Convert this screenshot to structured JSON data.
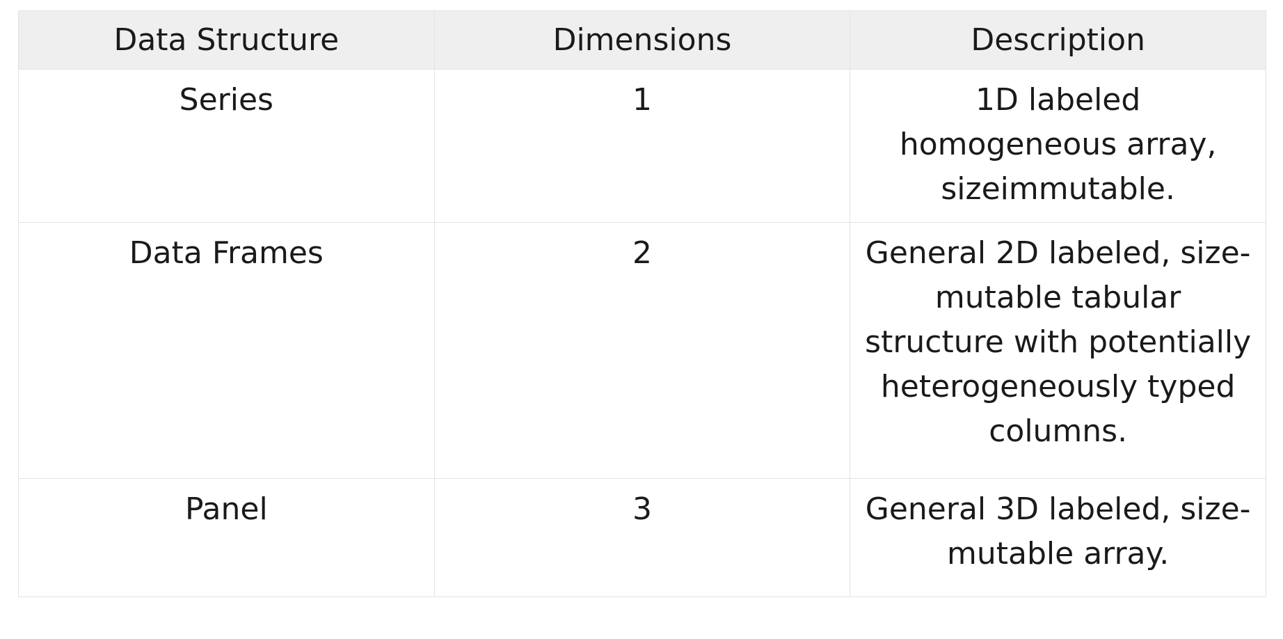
{
  "table": {
    "headers": [
      "Data Structure",
      "Dimensions",
      "Description"
    ],
    "rows": [
      {
        "structure": "Series",
        "dimensions": "1",
        "description": "1D labeled homogeneous array, sizeimmutable."
      },
      {
        "structure": "Data Frames",
        "dimensions": "2",
        "description": "General 2D labeled, size-mutable tabular structure with potentially heterogeneously typed columns."
      },
      {
        "structure": "Panel",
        "dimensions": "3",
        "description": "General 3D labeled, size-mutable array."
      }
    ]
  },
  "colors": {
    "header_bg": "#efefef",
    "border": "#e3e3e3",
    "text": "#1a1a1a"
  }
}
